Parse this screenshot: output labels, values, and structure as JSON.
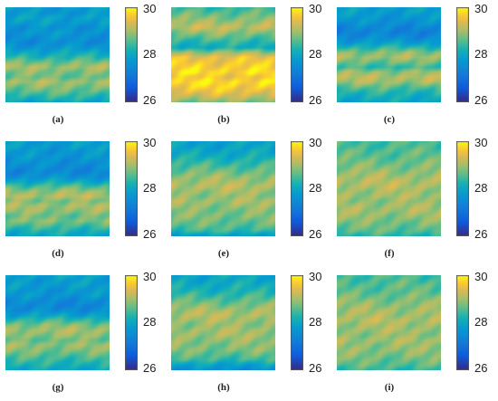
{
  "chart_data": [
    {
      "type": "heatmap",
      "panel_label": "(a)",
      "colorbar": {
        "min": 26,
        "max": 30,
        "ticks": [
          "30",
          "28",
          "26"
        ]
      },
      "row_values": [
        27.8,
        27.7,
        27.9,
        27.8,
        27.6,
        27.7,
        27.6,
        27.5,
        27.7,
        28.0,
        28.3,
        28.7,
        29.0,
        28.8,
        28.7,
        29.0,
        28.8,
        28.6,
        28.3,
        28.0
      ]
    },
    {
      "type": "heatmap",
      "panel_label": "(b)",
      "colorbar": {
        "min": 26,
        "max": 30,
        "ticks": [
          "30",
          "28",
          "26"
        ]
      },
      "row_values": [
        28.4,
        28.6,
        28.8,
        29.0,
        29.2,
        28.9,
        28.6,
        28.3,
        28.1,
        28.9,
        29.5,
        29.6,
        29.7,
        29.8,
        29.6,
        29.8,
        29.7,
        29.5,
        29.2,
        28.8
      ]
    },
    {
      "type": "heatmap",
      "panel_label": "(c)",
      "colorbar": {
        "min": 26,
        "max": 30,
        "ticks": [
          "30",
          "28",
          "26"
        ]
      },
      "row_values": [
        27.9,
        27.8,
        27.7,
        27.6,
        27.4,
        27.3,
        27.5,
        27.8,
        28.3,
        28.8,
        29.0,
        28.7,
        28.4,
        28.9,
        29.1,
        29.0,
        28.6,
        28.3,
        28.1,
        28.0
      ]
    },
    {
      "type": "heatmap",
      "panel_label": "(d)",
      "colorbar": {
        "min": 26,
        "max": 30,
        "ticks": [
          "30",
          "28",
          "26"
        ]
      },
      "row_values": [
        27.8,
        27.8,
        27.7,
        27.7,
        27.6,
        27.5,
        27.4,
        27.6,
        28.0,
        28.5,
        28.9,
        29.1,
        28.8,
        29.0,
        28.9,
        28.7,
        28.8,
        28.5,
        28.2,
        28.0
      ]
    },
    {
      "type": "heatmap",
      "panel_label": "(e)",
      "colorbar": {
        "min": 26,
        "max": 30,
        "ticks": [
          "30",
          "28",
          "26"
        ]
      },
      "row_values": [
        27.9,
        27.9,
        28.0,
        28.1,
        28.3,
        28.5,
        28.7,
        28.9,
        29.0,
        29.1,
        29.0,
        28.9,
        29.0,
        28.9,
        28.8,
        28.8,
        28.7,
        28.6,
        28.4,
        27.8
      ]
    },
    {
      "type": "heatmap",
      "panel_label": "(f)",
      "colorbar": {
        "min": 26,
        "max": 30,
        "ticks": [
          "30",
          "28",
          "26"
        ]
      },
      "row_values": [
        28.5,
        28.5,
        28.6,
        28.6,
        28.7,
        28.8,
        28.9,
        29.0,
        29.1,
        29.1,
        29.0,
        29.0,
        28.9,
        29.0,
        29.0,
        28.9,
        28.8,
        28.7,
        28.6,
        28.3
      ]
    },
    {
      "type": "heatmap",
      "panel_label": "(g)",
      "colorbar": {
        "min": 26,
        "max": 30,
        "ticks": [
          "30",
          "28",
          "26"
        ]
      },
      "row_values": [
        27.9,
        27.8,
        27.8,
        27.7,
        27.7,
        27.5,
        27.4,
        27.5,
        27.9,
        28.4,
        28.8,
        29.0,
        28.9,
        28.7,
        28.9,
        28.8,
        28.6,
        28.4,
        28.2,
        28.0
      ]
    },
    {
      "type": "heatmap",
      "panel_label": "(h)",
      "colorbar": {
        "min": 26,
        "max": 30,
        "ticks": [
          "30",
          "28",
          "26"
        ]
      },
      "row_values": [
        28.0,
        28.0,
        28.1,
        28.2,
        28.4,
        28.6,
        28.8,
        29.0,
        29.1,
        29.0,
        28.9,
        29.0,
        29.0,
        28.9,
        28.8,
        28.8,
        28.6,
        28.4,
        27.9,
        27.6
      ]
    },
    {
      "type": "heatmap",
      "panel_label": "(i)",
      "colorbar": {
        "min": 26,
        "max": 30,
        "ticks": [
          "30",
          "28",
          "26"
        ]
      },
      "row_values": [
        28.5,
        28.5,
        28.6,
        28.6,
        28.7,
        28.8,
        28.9,
        29.0,
        29.0,
        29.1,
        29.0,
        29.0,
        28.9,
        29.0,
        28.9,
        28.9,
        28.8,
        28.7,
        28.6,
        28.4
      ]
    }
  ]
}
